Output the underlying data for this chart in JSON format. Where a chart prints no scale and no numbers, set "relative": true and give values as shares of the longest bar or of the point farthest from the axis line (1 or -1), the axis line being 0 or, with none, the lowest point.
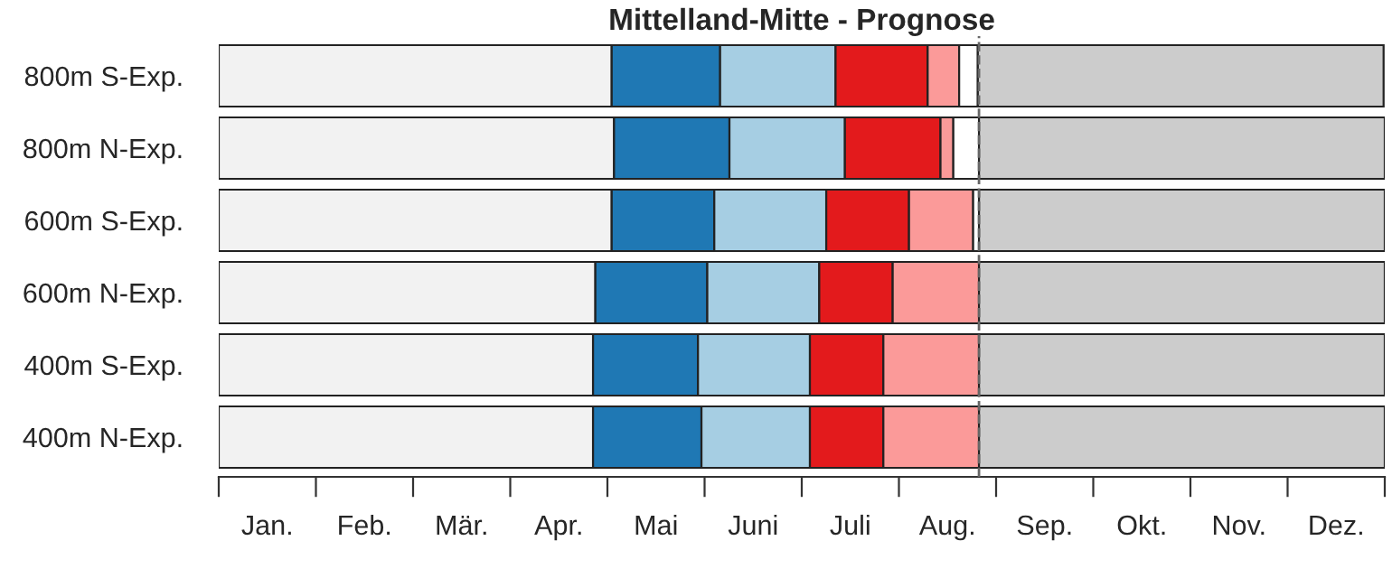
{
  "chart_data": {
    "type": "bar",
    "orientation": "horizontal",
    "stacked": true,
    "relative": true,
    "title": "Mittelland-Mitte - Prognose",
    "categories": [
      "800m S-Exp.",
      "800m N-Exp.",
      "600m S-Exp.",
      "600m N-Exp.",
      "400m S-Exp.",
      "400m N-Exp."
    ],
    "series": [
      {
        "color": "#f2f2f2",
        "values": [
          0.337,
          0.339,
          0.337,
          0.323,
          0.321,
          0.321
        ]
      },
      {
        "color": "#1f78b4",
        "values": [
          0.093,
          0.099,
          0.088,
          0.096,
          0.09,
          0.093
        ]
      },
      {
        "color": "#a6cee3",
        "values": [
          0.099,
          0.099,
          0.096,
          0.096,
          0.096,
          0.093
        ]
      },
      {
        "color": "#e31a1c",
        "values": [
          0.079,
          0.082,
          0.071,
          0.063,
          0.063,
          0.063
        ]
      },
      {
        "color": "#fb9a99",
        "values": [
          0.027,
          0.011,
          0.055,
          0.074,
          0.082,
          0.082
        ]
      },
      {
        "color": "#ffffff",
        "values": [
          0.016,
          0.022,
          0.005,
          null,
          null,
          null
        ]
      },
      {
        "color": "#cccccc",
        "values": [
          0.348,
          0.348,
          0.348,
          0.348,
          0.348,
          0.348
        ]
      }
    ],
    "annotations": [
      "Jan.",
      "Feb.",
      "Mär.",
      "Apr.",
      "Mai",
      "Juni",
      "Juli",
      "Aug.",
      "Sep.",
      "Okt.",
      "Nov.",
      "Dez."
    ],
    "ref_lines": [
      {
        "axis": "x",
        "value": 0.652,
        "color": "#666666",
        "line_style": "dashed"
      }
    ],
    "legend": false,
    "grid": false
  }
}
